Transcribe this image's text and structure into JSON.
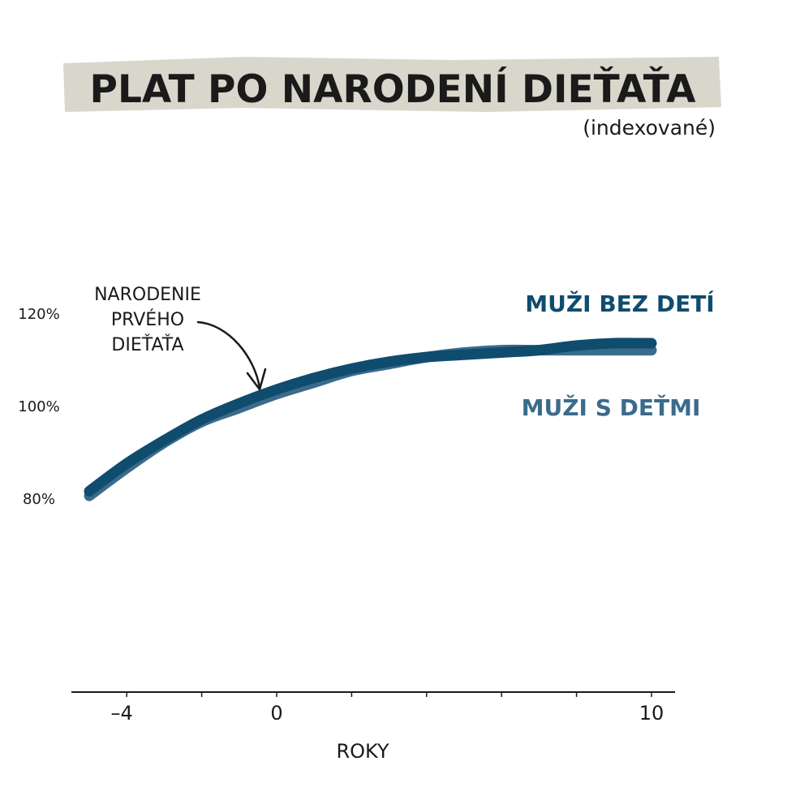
{
  "chart_data": {
    "type": "line",
    "title": "PLAT PO NARODENÍ DIEŤAŤA",
    "subtitle": "(indexované)",
    "xlabel": "ROKY",
    "ylabel": "",
    "xlim": [
      -5,
      10.5
    ],
    "ylim": [
      60,
      140
    ],
    "x_ticks": [
      -4,
      0,
      10
    ],
    "y_ticks": [
      "80%",
      "100%",
      "120%"
    ],
    "y_tick_values": [
      80,
      100,
      120
    ],
    "annotation": {
      "text": [
        "NARODENIE",
        "PRVÉHO",
        "DIEŤAŤA"
      ],
      "x": 0,
      "y": 100
    },
    "grid": false,
    "series": [
      {
        "name": "MUŽI S DEŤMI",
        "color": "#3b6b8c",
        "x": [
          -5,
          -4,
          -3,
          -2,
          -1,
          0,
          1,
          2,
          3,
          4,
          5,
          6,
          7,
          8,
          9,
          10
        ],
        "y": [
          80.5,
          86.5,
          92,
          96.5,
          99.5,
          102.5,
          105,
          107.5,
          109,
          110.5,
          111.5,
          112,
          112,
          112,
          112,
          112
        ]
      },
      {
        "name": "MUŽI BEZ DETÍ",
        "color": "#0f4c6e",
        "x": [
          -5,
          -4,
          -3,
          -2,
          -1,
          0,
          1,
          2,
          3,
          4,
          5,
          6,
          7,
          8,
          9,
          10
        ],
        "y": [
          81.5,
          87.5,
          92.5,
          97,
          100.5,
          103.5,
          106,
          108,
          109.5,
          110.5,
          111,
          111.5,
          112,
          113,
          113.5,
          113.5
        ]
      }
    ]
  }
}
